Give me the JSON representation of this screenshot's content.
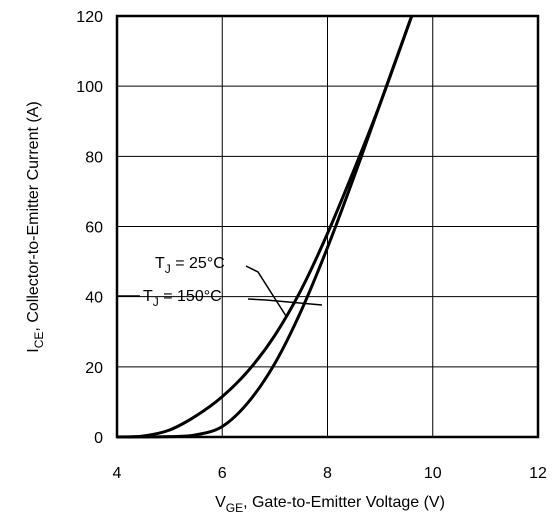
{
  "chart_data": {
    "type": "line",
    "xlabel": {
      "main": "V",
      "sub": "GE",
      "rest": ", Gate-to-Emitter Voltage  (V)"
    },
    "ylabel": {
      "main": "I",
      "sub": "CE",
      "rest": ", Collector-to-Emitter Current  (A)"
    },
    "xlim": [
      4,
      12
    ],
    "ylim": [
      0,
      120
    ],
    "xticks": [
      "4",
      "6",
      "8",
      "10",
      "12"
    ],
    "yticks": [
      "0",
      "20",
      "40",
      "60",
      "80",
      "100",
      "120"
    ],
    "grid": true,
    "series": [
      {
        "name": {
          "main": "T",
          "sub": "J",
          "rest": " = 25°C"
        },
        "x": [
          4.0,
          4.5,
          5.0,
          5.5,
          6.0,
          6.5,
          7.0,
          7.5,
          8.0,
          8.5,
          9.0,
          9.6
        ],
        "y": [
          0,
          0.3,
          2,
          6,
          11.5,
          19,
          29,
          42,
          58,
          76,
          95,
          120
        ]
      },
      {
        "name": {
          "main": "T",
          "sub": "J",
          "rest": " = 150°C"
        },
        "x": [
          4.0,
          5.0,
          5.5,
          6.0,
          6.5,
          7.0,
          7.5,
          8.0,
          8.5,
          9.0,
          9.6
        ],
        "y": [
          0,
          0.1,
          0.6,
          3,
          10,
          21,
          36,
          54,
          74,
          95,
          120
        ]
      }
    ]
  }
}
